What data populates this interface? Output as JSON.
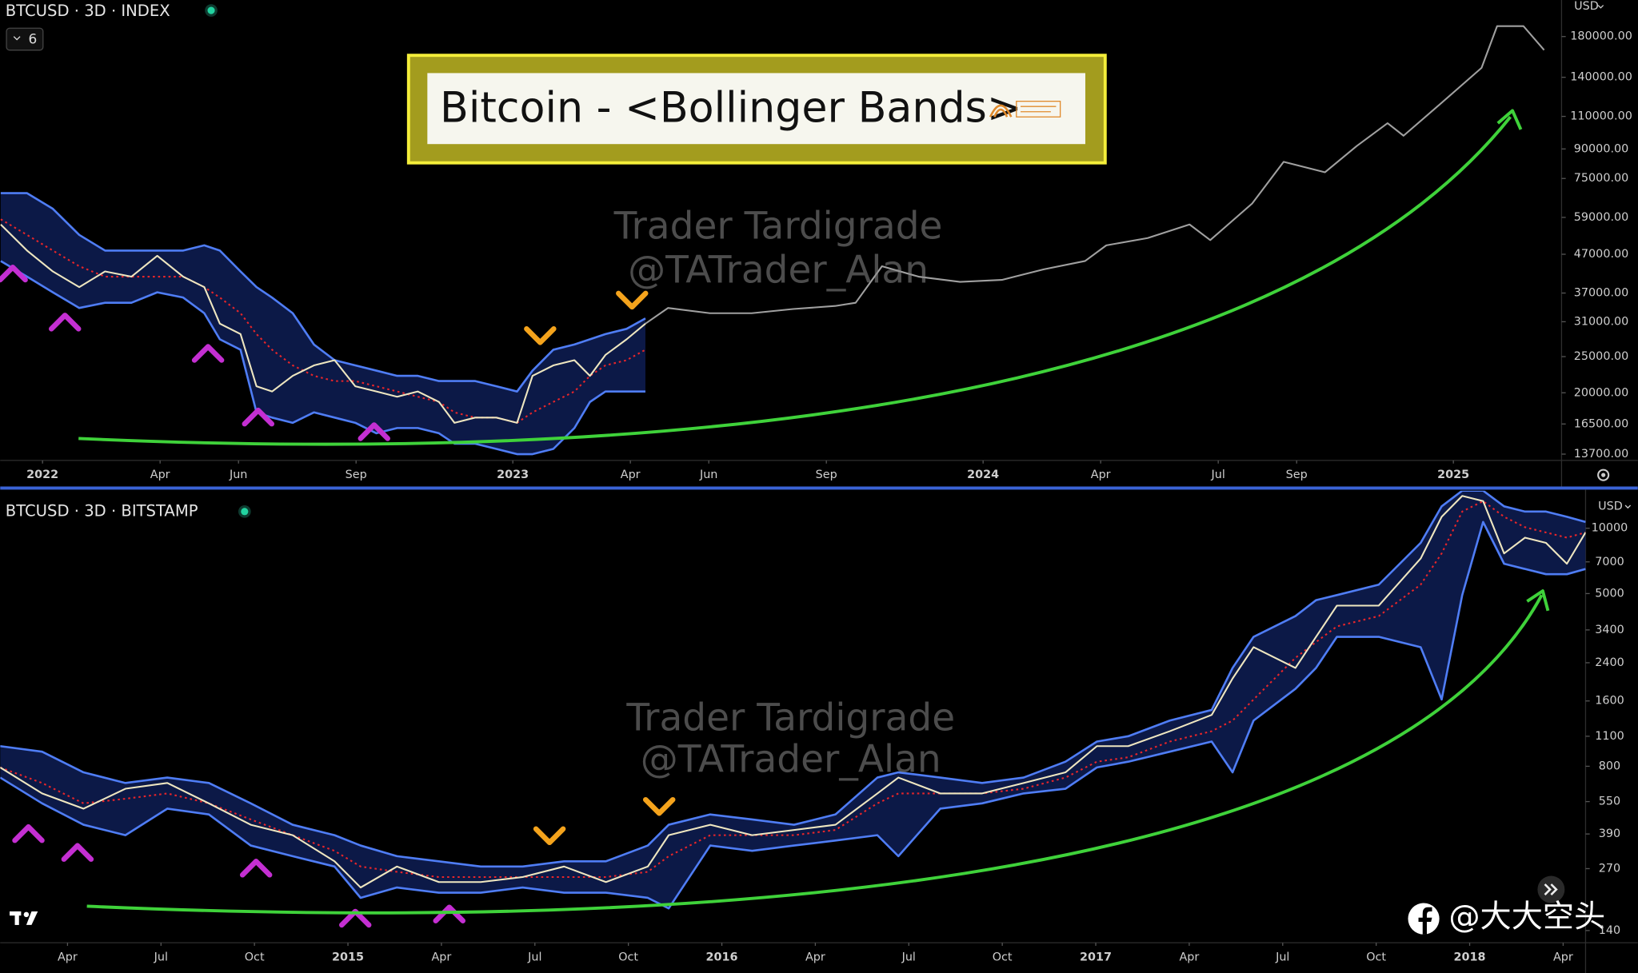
{
  "chart_data": [
    {
      "type": "line",
      "title": "BTCUSD · 3D · INDEX",
      "indicator_count": 6,
      "banner": "Bitcoin - <Bollinger Bands>",
      "watermark": [
        "Trader Tardigrade",
        "@TATrader_Alan"
      ],
      "currency": "USD",
      "log_scale": true,
      "grid": false,
      "band_fill": "#0c1947",
      "xlim": [
        2021.91,
        2025.23
      ],
      "xticks": [
        2022,
        {
          "value": 2022.25,
          "label": "Apr"
        },
        {
          "value": 2022.4167,
          "label": "Jun"
        },
        {
          "value": 2022.6667,
          "label": "Sep"
        },
        2023,
        {
          "value": 2023.25,
          "label": "Apr"
        },
        {
          "value": 2023.4167,
          "label": "Jun"
        },
        {
          "value": 2023.6667,
          "label": "Sep"
        },
        2024,
        {
          "value": 2024.25,
          "label": "Apr"
        },
        {
          "value": 2024.5,
          "label": "Jul"
        },
        {
          "value": 2024.6667,
          "label": "Sep"
        },
        2025
      ],
      "ylim": [
        13180,
        225500
      ],
      "yticks": [
        {
          "value": 13700,
          "label": "13700.00"
        },
        {
          "value": 16500,
          "label": "16500.00"
        },
        {
          "value": 20000,
          "label": "20000.00"
        },
        {
          "value": 25000,
          "label": "25000.00"
        },
        {
          "value": 31000,
          "label": "31000.00"
        },
        {
          "value": 37000,
          "label": "37000.00"
        },
        {
          "value": 47000,
          "label": "47000.00"
        },
        {
          "value": 59000,
          "label": "59000.00"
        },
        {
          "value": 75000,
          "label": "75000.00"
        },
        {
          "value": 90000,
          "label": "90000.00"
        },
        {
          "value": 110000,
          "label": "110000.00"
        },
        {
          "value": 140000,
          "label": "140000.00"
        },
        {
          "value": 180000,
          "label": "180000.00"
        }
      ],
      "x": [
        2021.911,
        2021.967,
        2022.022,
        2022.078,
        2022.133,
        2022.189,
        2022.244,
        2022.299,
        2022.344,
        2022.377,
        2022.421,
        2022.455,
        2022.488,
        2022.532,
        2022.577,
        2022.621,
        2022.665,
        2022.71,
        2022.754,
        2022.798,
        2022.843,
        2022.876,
        2022.92,
        2022.965,
        2023.009,
        2023.042,
        2023.086,
        2023.131,
        2023.164,
        2023.197,
        2023.242,
        2023.282,
        2023.33,
        2023.419,
        2023.508,
        2023.596,
        2023.685,
        2023.729,
        2023.785,
        2023.863,
        2023.951,
        2024.04,
        2024.129,
        2024.217,
        2024.262,
        2024.35,
        2024.439,
        2024.483,
        2024.572,
        2024.639,
        2024.727,
        2024.794,
        2024.86,
        2024.894,
        2024.971,
        2025.06,
        2025.093,
        2025.149,
        2025.193
      ],
      "series": [
        {
          "color": "#4f7df5",
          "band": "upper",
          "values": [
            68530,
            68530,
            62220,
            52960,
            48080,
            48080,
            48080,
            48080,
            49650,
            48080,
            42270,
            38370,
            35980,
            32670,
            26930,
            24450,
            23680,
            22930,
            22200,
            22200,
            21500,
            21500,
            21500,
            20820,
            20160,
            22930,
            26080,
            26930,
            27810,
            28720,
            29660,
            31630,
            null,
            null,
            null,
            null,
            null,
            null,
            null,
            null,
            null,
            null,
            null,
            null,
            null,
            null,
            null,
            null,
            null,
            null,
            null,
            null,
            null,
            null,
            null,
            null,
            null,
            null,
            null
          ]
        },
        {
          "color": "#4f7df5",
          "band": "lower",
          "values": [
            45080,
            40930,
            37160,
            33740,
            34840,
            34840,
            37160,
            35980,
            32670,
            27810,
            26080,
            17720,
            17160,
            16620,
            17720,
            17160,
            16620,
            15580,
            16090,
            16090,
            15580,
            14610,
            14610,
            14150,
            13700,
            13700,
            14150,
            16090,
            18900,
            20160,
            20160,
            20160,
            null,
            null,
            null,
            null,
            null,
            null,
            null,
            null,
            null,
            null,
            null,
            null,
            null,
            null,
            null,
            null,
            null,
            null,
            null,
            null,
            null,
            null,
            null,
            null,
            null,
            null,
            null
          ]
        },
        {
          "color": "#e8252a",
          "dashed": true,
          "values": [
            58340,
            52960,
            48080,
            43650,
            40930,
            40930,
            40930,
            40930,
            38370,
            35980,
            32670,
            28720,
            26080,
            23680,
            22200,
            21500,
            21500,
            20820,
            20160,
            19520,
            18900,
            17720,
            17160,
            17160,
            16620,
            17720,
            18900,
            20160,
            22200,
            23680,
            24450,
            26080,
            null,
            null,
            null,
            null,
            null,
            null,
            null,
            null,
            null,
            null,
            null,
            null,
            null,
            null,
            null,
            null,
            null,
            null,
            null,
            null,
            null,
            null,
            null,
            null,
            null,
            null,
            null
          ]
        },
        {
          "color": "#eee6c0",
          "values": [
            56490,
            48080,
            42270,
            38370,
            42270,
            40930,
            46550,
            40930,
            38370,
            30630,
            28720,
            20820,
            20160,
            22200,
            23680,
            24450,
            20820,
            20160,
            19520,
            20160,
            18900,
            16620,
            17160,
            17160,
            16620,
            22200,
            23680,
            24450,
            22200,
            25250,
            27810,
            30630,
            null,
            null,
            null,
            null,
            null,
            null,
            null,
            null,
            null,
            null,
            null,
            null,
            null,
            null,
            null,
            null,
            null,
            null,
            null,
            null,
            null,
            null,
            null,
            null,
            null,
            null,
            null
          ]
        },
        {
          "color": "#a0a0a0",
          "values": [
            null,
            null,
            null,
            null,
            null,
            null,
            null,
            null,
            null,
            null,
            null,
            null,
            null,
            null,
            null,
            null,
            null,
            null,
            null,
            null,
            null,
            null,
            null,
            null,
            null,
            null,
            null,
            null,
            null,
            null,
            null,
            30630,
            33740,
            32670,
            32670,
            33520,
            34170,
            34840,
            43650,
            40930,
            39630,
            40130,
            42830,
            45080,
            49650,
            51960,
            56490,
            51280,
            64260,
            83130,
            77940,
            91560,
            105500,
            97650,
            118460,
            148400,
            192000,
            192000,
            165600
          ]
        }
      ]
    },
    {
      "type": "line",
      "title": "BTCUSD · 3D · BITSTAMP",
      "watermark": [
        "Trader Tardigrade",
        "@TATrader_Alan"
      ],
      "currency": "USD",
      "log_scale": true,
      "grid": false,
      "band_fill": "#0c1947",
      "xlim": [
        2014.07,
        2018.31
      ],
      "xticks": [
        {
          "value": 2014.25,
          "label": "Apr"
        },
        {
          "value": 2014.5,
          "label": "Jul"
        },
        {
          "value": 2014.75,
          "label": "Oct"
        },
        2015,
        {
          "value": 2015.25,
          "label": "Apr"
        },
        {
          "value": 2015.5,
          "label": "Jul"
        },
        {
          "value": 2015.75,
          "label": "Oct"
        },
        2016,
        {
          "value": 2016.25,
          "label": "Apr"
        },
        {
          "value": 2016.5,
          "label": "Jul"
        },
        {
          "value": 2016.75,
          "label": "Oct"
        },
        2017,
        {
          "value": 2017.25,
          "label": "Apr"
        },
        {
          "value": 2017.5,
          "label": "Jul"
        },
        {
          "value": 2017.75,
          "label": "Oct"
        },
        2018,
        {
          "value": 2018.25,
          "label": "Apr"
        }
      ],
      "ylim": [
        123,
        14900
      ],
      "yticks": [
        140,
        270,
        390,
        550,
        800,
        1100,
        1600,
        2400,
        3400,
        5000,
        7000,
        10000
      ],
      "x": [
        2014.07,
        2014.182,
        2014.293,
        2014.405,
        2014.517,
        2014.628,
        2014.74,
        2014.852,
        2014.964,
        2015.034,
        2015.131,
        2015.243,
        2015.355,
        2015.467,
        2015.578,
        2015.69,
        2015.802,
        2015.858,
        2015.969,
        2016.081,
        2016.193,
        2016.304,
        2016.416,
        2016.472,
        2016.584,
        2016.696,
        2016.807,
        2016.919,
        2017.003,
        2017.087,
        2017.198,
        2017.31,
        2017.366,
        2017.422,
        2017.534,
        2017.589,
        2017.645,
        2017.757,
        2017.869,
        2017.925,
        2017.98,
        2018.036,
        2018.092,
        2018.148,
        2018.204,
        2018.26,
        2018.31
      ],
      "series": [
        {
          "color": "#4f7df5",
          "band": "upper",
          "values": [
            990,
            934,
            750,
            670,
            710,
            670,
            540,
            430,
            385,
            345,
            308,
            292,
            276,
            276,
            292,
            292,
            345,
            430,
            480,
            455,
            430,
            480,
            710,
            750,
            710,
            670,
            710,
            840,
            1040,
            1100,
            1300,
            1455,
            2270,
            3160,
            3940,
            4660,
            4920,
            5500,
            8560,
            12620,
            14900,
            14900,
            12620,
            11940,
            11940,
            11300,
            10690
          ]
        },
        {
          "color": "#4f7df5",
          "band": "lower",
          "values": [
            710,
            540,
            430,
            385,
            510,
            480,
            345,
            308,
            276,
            198,
            221,
            209,
            209,
            221,
            209,
            209,
            198,
            177,
            345,
            326,
            345,
            364,
            385,
            308,
            510,
            540,
            600,
            630,
            790,
            840,
            934,
            1040,
            750,
            1300,
            1820,
            2270,
            3160,
            3160,
            2830,
            1625,
            4920,
            10690,
            6860,
            6490,
            6140,
            6140,
            6490
          ]
        },
        {
          "color": "#e8252a",
          "dashed": true,
          "values": [
            790,
            670,
            540,
            567,
            600,
            540,
            455,
            385,
            326,
            276,
            261,
            247,
            247,
            247,
            247,
            247,
            261,
            308,
            385,
            385,
            385,
            407,
            540,
            600,
            600,
            600,
            630,
            710,
            840,
            880,
            1040,
            1160,
            1300,
            1625,
            2530,
            2990,
            3530,
            3940,
            5500,
            7660,
            11940,
            13340,
            11300,
            10110,
            9570,
            9050,
            9570
          ]
        },
        {
          "color": "#eee6c0",
          "values": [
            790,
            600,
            510,
            630,
            670,
            540,
            430,
            385,
            292,
            221,
            276,
            234,
            234,
            247,
            276,
            234,
            276,
            385,
            430,
            385,
            407,
            430,
            600,
            710,
            600,
            600,
            670,
            750,
            990,
            990,
            1160,
            1380,
            2030,
            2830,
            2270,
            3160,
            4400,
            4400,
            7250,
            11300,
            14100,
            13340,
            7660,
            9050,
            8560,
            6860,
            9570
          ]
        }
      ]
    }
  ],
  "overlay": {
    "watermark": "@大大空头"
  }
}
